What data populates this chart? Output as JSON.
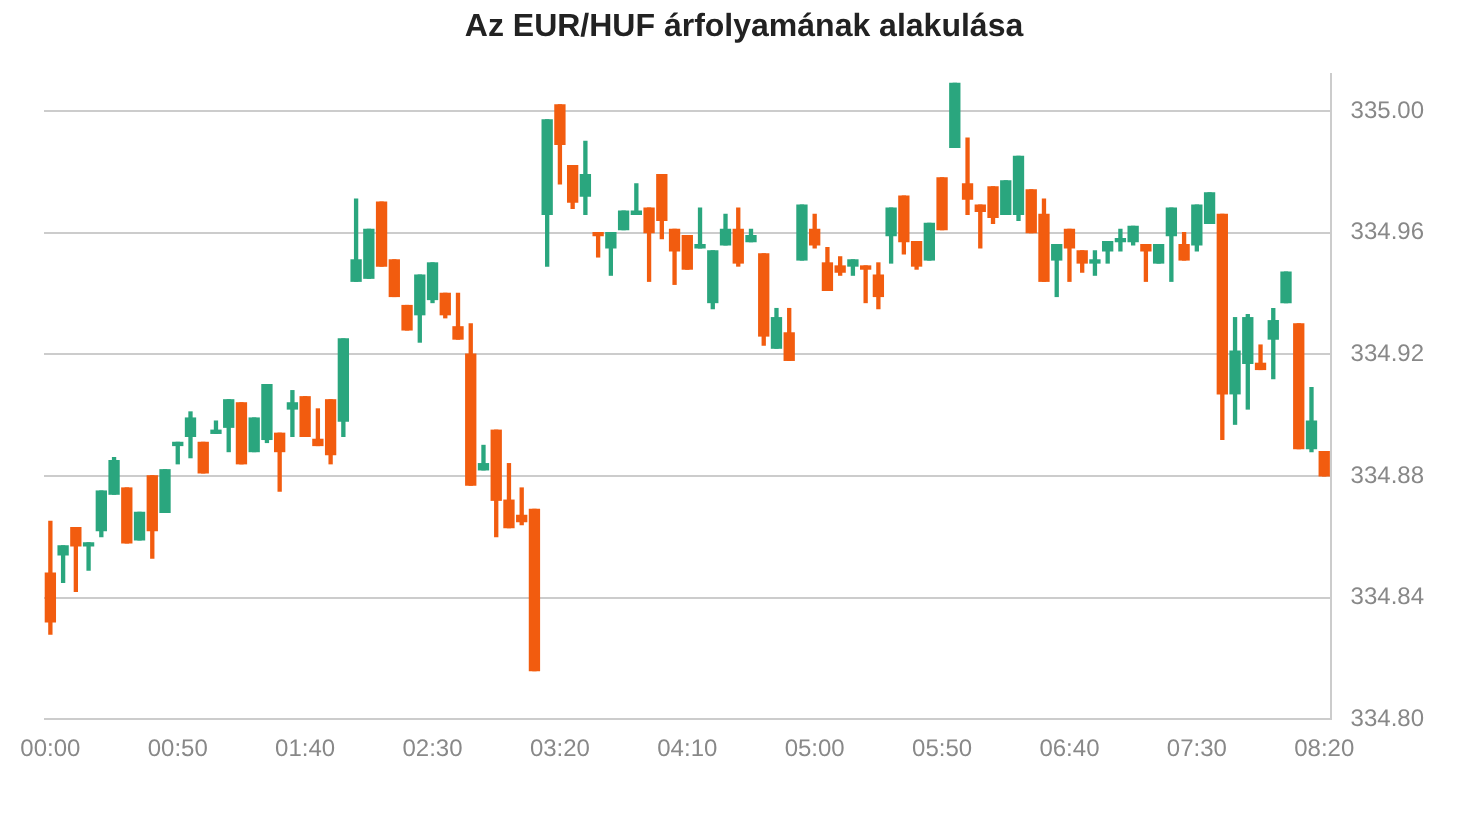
{
  "chart_data": {
    "type": "candlestick",
    "title": "Az EUR/HUF árfolyamának alakulása",
    "categories": [
      "00:00",
      null,
      null,
      null,
      null,
      null,
      null,
      null,
      null,
      null,
      "00:50",
      null,
      null,
      null,
      null,
      null,
      null,
      null,
      null,
      null,
      "01:40",
      null,
      null,
      null,
      null,
      null,
      null,
      null,
      null,
      null,
      "02:30",
      null,
      null,
      null,
      null,
      null,
      null,
      null,
      null,
      null,
      "03:20",
      null,
      null,
      null,
      null,
      null,
      null,
      null,
      null,
      null,
      "04:10",
      null,
      null,
      null,
      null,
      null,
      null,
      null,
      null,
      null,
      "05:00",
      null,
      null,
      null,
      null,
      null,
      null,
      null,
      null,
      null,
      "05:50",
      null,
      null,
      null,
      null,
      null,
      null,
      null,
      null,
      null,
      "06:40",
      null,
      null,
      null,
      null,
      null,
      null,
      null,
      null,
      null,
      "07:30",
      null,
      null,
      null,
      null,
      null,
      null,
      null,
      null,
      null,
      "08:20"
    ],
    "ohlc": [
      [
        334.848,
        334.865,
        334.828,
        334.832
      ],
      [
        334.854,
        334.857,
        334.845,
        334.857
      ],
      [
        334.863,
        334.863,
        334.842,
        334.857
      ],
      [
        334.857,
        334.858,
        334.849,
        334.858
      ],
      [
        334.862,
        334.875,
        334.86,
        334.875
      ],
      [
        334.874,
        334.886,
        334.874,
        334.885
      ],
      [
        334.876,
        334.876,
        334.858,
        334.858
      ],
      [
        334.859,
        334.868,
        334.859,
        334.868
      ],
      [
        334.88,
        334.88,
        334.853,
        334.862
      ],
      [
        334.868,
        334.882,
        334.868,
        334.882
      ],
      [
        334.89,
        334.891,
        334.884,
        334.891
      ],
      [
        334.893,
        334.901,
        334.886,
        334.899
      ],
      [
        334.891,
        334.891,
        334.881,
        334.881
      ],
      [
        334.894,
        334.898,
        334.894,
        334.895
      ],
      [
        334.896,
        334.905,
        334.888,
        334.905
      ],
      [
        334.904,
        334.904,
        334.884,
        334.884
      ],
      [
        334.888,
        334.899,
        334.888,
        334.899
      ],
      [
        334.892,
        334.91,
        334.891,
        334.91
      ],
      [
        334.894,
        334.894,
        334.875,
        334.888
      ],
      [
        334.902,
        334.908,
        334.893,
        334.904
      ],
      [
        334.906,
        334.906,
        334.893,
        334.893
      ],
      [
        334.892,
        334.902,
        334.89,
        334.89
      ],
      [
        334.905,
        334.905,
        334.884,
        334.887
      ],
      [
        334.898,
        334.925,
        334.893,
        334.925
      ],
      [
        334.944,
        334.971,
        334.944,
        334.951
      ],
      [
        334.945,
        334.961,
        334.945,
        334.961
      ],
      [
        334.97,
        334.97,
        334.949,
        334.949
      ],
      [
        334.951,
        334.951,
        334.939,
        334.939
      ],
      [
        334.936,
        334.936,
        334.928,
        334.928
      ],
      [
        334.933,
        334.946,
        334.924,
        334.946
      ],
      [
        334.938,
        334.95,
        334.937,
        334.95
      ],
      [
        334.94,
        334.94,
        334.932,
        334.933
      ],
      [
        334.929,
        334.94,
        334.925,
        334.925
      ],
      [
        334.92,
        334.93,
        334.877,
        334.877
      ],
      [
        334.882,
        334.89,
        334.882,
        334.884
      ],
      [
        334.895,
        334.895,
        334.86,
        334.872
      ],
      [
        334.872,
        334.884,
        334.863,
        334.863
      ],
      [
        334.867,
        334.876,
        334.864,
        334.865
      ],
      [
        334.869,
        334.869,
        334.816,
        334.816
      ],
      [
        334.966,
        334.997,
        334.949,
        334.997
      ],
      [
        335.002,
        335.002,
        334.976,
        334.989
      ],
      [
        334.982,
        334.982,
        334.968,
        334.97
      ],
      [
        334.972,
        334.99,
        334.966,
        334.979
      ],
      [
        334.96,
        334.96,
        334.952,
        334.959
      ],
      [
        334.955,
        334.96,
        334.946,
        334.96
      ],
      [
        334.961,
        334.967,
        334.961,
        334.967
      ],
      [
        334.966,
        334.976,
        334.966,
        334.967
      ],
      [
        334.968,
        334.968,
        334.944,
        334.96
      ],
      [
        334.979,
        334.979,
        334.958,
        334.964
      ],
      [
        334.961,
        334.961,
        334.943,
        334.954
      ],
      [
        334.959,
        334.959,
        334.948,
        334.948
      ],
      [
        334.955,
        334.968,
        334.955,
        334.956
      ],
      [
        334.937,
        334.954,
        334.935,
        334.954
      ],
      [
        334.956,
        334.966,
        334.956,
        334.961
      ],
      [
        334.961,
        334.968,
        334.949,
        334.95
      ],
      [
        334.957,
        334.961,
        334.957,
        334.959
      ],
      [
        334.953,
        334.953,
        334.923,
        334.926
      ],
      [
        334.922,
        334.935,
        334.922,
        334.932
      ],
      [
        334.927,
        334.935,
        334.918,
        334.918
      ],
      [
        334.951,
        334.969,
        334.951,
        334.969
      ],
      [
        334.961,
        334.966,
        334.955,
        334.956
      ],
      [
        334.95,
        334.955,
        334.941,
        334.941
      ],
      [
        334.949,
        334.952,
        334.946,
        334.947
      ],
      [
        334.949,
        334.951,
        334.946,
        334.951
      ],
      [
        334.949,
        334.949,
        334.937,
        334.948
      ],
      [
        334.946,
        334.95,
        334.935,
        334.939
      ],
      [
        334.959,
        334.968,
        334.95,
        334.968
      ],
      [
        334.972,
        334.972,
        334.953,
        334.957
      ],
      [
        334.957,
        334.957,
        334.948,
        334.949
      ],
      [
        334.951,
        334.963,
        334.951,
        334.963
      ],
      [
        334.978,
        334.978,
        334.961,
        334.961
      ],
      [
        334.988,
        335.009,
        334.988,
        335.009
      ],
      [
        334.976,
        334.991,
        334.966,
        334.971
      ],
      [
        334.969,
        334.969,
        334.955,
        334.967
      ],
      [
        334.975,
        334.975,
        334.963,
        334.965
      ],
      [
        334.966,
        334.977,
        334.966,
        334.977
      ],
      [
        334.966,
        334.985,
        334.964,
        334.985
      ],
      [
        334.974,
        334.974,
        334.96,
        334.96
      ],
      [
        334.966,
        334.971,
        334.944,
        334.944
      ],
      [
        334.951,
        334.956,
        334.939,
        334.956
      ],
      [
        334.961,
        334.961,
        334.944,
        334.955
      ],
      [
        334.954,
        334.954,
        334.947,
        334.95
      ],
      [
        334.95,
        334.954,
        334.946,
        334.951
      ],
      [
        334.954,
        334.957,
        334.95,
        334.957
      ],
      [
        334.957,
        334.961,
        334.954,
        334.958
      ],
      [
        334.957,
        334.962,
        334.956,
        334.962
      ],
      [
        334.956,
        334.956,
        334.944,
        334.954
      ],
      [
        334.95,
        334.956,
        334.95,
        334.956
      ],
      [
        334.959,
        334.968,
        334.944,
        334.968
      ],
      [
        334.956,
        334.96,
        334.951,
        334.951
      ],
      [
        334.956,
        334.969,
        334.954,
        334.969
      ],
      [
        334.963,
        334.973,
        334.963,
        334.973
      ],
      [
        334.966,
        334.966,
        334.892,
        334.907
      ],
      [
        334.907,
        334.932,
        334.897,
        334.921
      ],
      [
        334.917,
        334.933,
        334.902,
        334.932
      ],
      [
        334.917,
        334.923,
        334.915,
        334.915
      ],
      [
        334.925,
        334.935,
        334.912,
        334.931
      ],
      [
        334.937,
        334.947,
        334.937,
        334.947
      ],
      [
        334.93,
        334.93,
        334.889,
        334.889
      ],
      [
        334.889,
        334.909,
        334.888,
        334.898
      ],
      [
        334.888,
        334.888,
        334.88,
        334.88
      ]
    ],
    "colors": [
      "#f25c0f",
      "#2aa67e",
      "#f25c0f",
      "#2aa67e",
      "#2aa67e",
      "#2aa67e",
      "#f25c0f",
      "#2aa67e",
      "#f25c0f",
      "#2aa67e",
      "#2aa67e",
      "#2aa67e",
      "#f25c0f",
      "#2aa67e",
      "#2aa67e",
      "#f25c0f",
      "#2aa67e",
      "#2aa67e",
      "#f25c0f",
      "#2aa67e",
      "#f25c0f",
      "#f25c0f",
      "#f25c0f",
      "#2aa67e",
      "#2aa67e",
      "#2aa67e",
      "#f25c0f",
      "#f25c0f",
      "#f25c0f",
      "#2aa67e",
      "#2aa67e",
      "#f25c0f",
      "#f25c0f",
      "#f25c0f",
      "#2aa67e",
      "#f25c0f",
      "#f25c0f",
      "#f25c0f",
      "#f25c0f",
      "#2aa67e",
      "#f25c0f",
      "#f25c0f",
      "#2aa67e",
      "#f25c0f",
      "#2aa67e",
      "#2aa67e",
      "#2aa67e",
      "#f25c0f",
      "#f25c0f",
      "#f25c0f",
      "#f25c0f",
      "#2aa67e",
      "#2aa67e",
      "#2aa67e",
      "#f25c0f",
      "#2aa67e",
      "#f25c0f",
      "#2aa67e",
      "#f25c0f",
      "#2aa67e",
      "#f25c0f",
      "#f25c0f",
      "#f25c0f",
      "#2aa67e",
      "#f25c0f",
      "#f25c0f",
      "#2aa67e",
      "#f25c0f",
      "#f25c0f",
      "#2aa67e",
      "#f25c0f",
      "#2aa67e",
      "#f25c0f",
      "#f25c0f",
      "#f25c0f",
      "#2aa67e",
      "#2aa67e",
      "#f25c0f",
      "#f25c0f",
      "#2aa67e",
      "#f25c0f",
      "#f25c0f",
      "#2aa67e",
      "#2aa67e",
      "#2aa67e",
      "#2aa67e",
      "#f25c0f",
      "#2aa67e",
      "#2aa67e",
      "#f25c0f",
      "#2aa67e",
      "#2aa67e",
      "#f25c0f",
      "#2aa67e",
      "#2aa67e",
      "#f25c0f",
      "#2aa67e",
      "#2aa67e",
      "#f25c0f",
      "#2aa67e",
      "#f25c0f"
    ],
    "ylim": [
      334.8,
      335.012
    ],
    "yticks": [
      {
        "value": 334.8,
        "label": "334.80"
      },
      {
        "value": 334.84,
        "label": "334.84"
      },
      {
        "value": 334.88,
        "label": "334.88"
      },
      {
        "value": 334.92,
        "label": "334.92"
      },
      {
        "value": 334.96,
        "label": "334.96"
      },
      {
        "value": 335.0,
        "label": "335.00"
      }
    ],
    "grid": "y",
    "legend": false
  }
}
